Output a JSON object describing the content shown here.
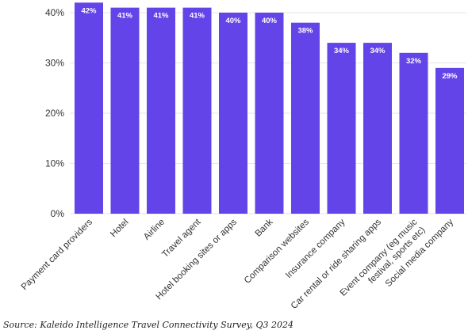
{
  "chart_data": {
    "type": "bar",
    "categories": [
      "Payment card providers",
      "Hotel",
      "Airline",
      "Travel agent",
      "Hotel booking sites or apps",
      "Bank",
      "Comparison websites",
      "Insurance company",
      "Car rental or ride sharing apps",
      [
        "Event company (eg music",
        "festival, sports etc)"
      ],
      "Social media company"
    ],
    "values": [
      42,
      41,
      41,
      41,
      40,
      40,
      38,
      34,
      34,
      32,
      29
    ],
    "data_labels": [
      "42%",
      "41%",
      "41%",
      "41%",
      "40%",
      "40%",
      "38%",
      "34%",
      "34%",
      "32%",
      "29%"
    ],
    "y_ticks": [
      0,
      10,
      20,
      30,
      40
    ],
    "y_tick_labels": [
      "0%",
      "10%",
      "20%",
      "30%",
      "40%"
    ],
    "ylim": [
      0,
      42
    ],
    "grid": true,
    "legend": "none",
    "bar_color": "#6344e9",
    "grid_color": "#e6e6e6",
    "label_color": "#333333"
  },
  "source": "Source: Kaleido Intelligence Travel Connectivity Survey, Q3 2024"
}
